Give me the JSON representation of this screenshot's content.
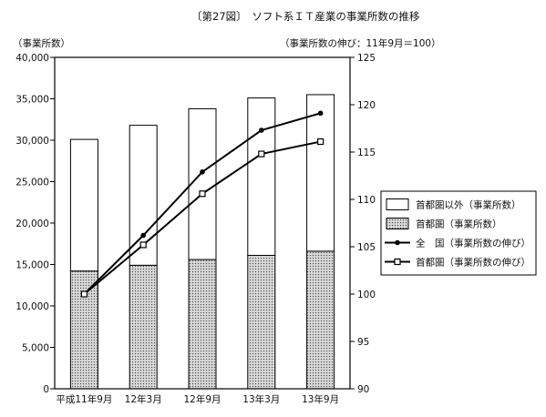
{
  "chart_data": {
    "type": "bar",
    "title": "〔第27図〕　ソフト系ＩＴ産業の事業所数の推移",
    "left_axis_label": "（事業所数）",
    "right_axis_label": "（事業所数の伸び：11年9月＝100）",
    "categories": [
      "平成11年9月",
      "12年3月",
      "12年9月",
      "13年3月",
      "13年9月"
    ],
    "left_ylim": [
      0,
      40000
    ],
    "left_ticks": [
      "0",
      "5,000",
      "10,000",
      "15,000",
      "20,000",
      "25,000",
      "30,000",
      "35,000",
      "40,000"
    ],
    "right_ylim": [
      90,
      125
    ],
    "right_ticks": [
      "90",
      "95",
      "100",
      "105",
      "110",
      "115",
      "120",
      "125"
    ],
    "bar_series": [
      {
        "name": "首都圏以外（事業所数）",
        "values": [
          15900,
          16900,
          18200,
          19000,
          18900
        ]
      },
      {
        "name": "首都圏（事業所数）",
        "values": [
          14200,
          14900,
          15600,
          16100,
          16600
        ]
      }
    ],
    "line_series": [
      {
        "name": "全　国（事業所数の伸び）",
        "marker": "filled-circle",
        "values": [
          100,
          106.2,
          112.9,
          117.3,
          119.1
        ]
      },
      {
        "name": "首都圏（事業所数の伸び）",
        "marker": "open-square",
        "values": [
          100,
          105.2,
          110.6,
          114.8,
          116.1
        ]
      }
    ],
    "legend_position": "right",
    "grid": false
  }
}
